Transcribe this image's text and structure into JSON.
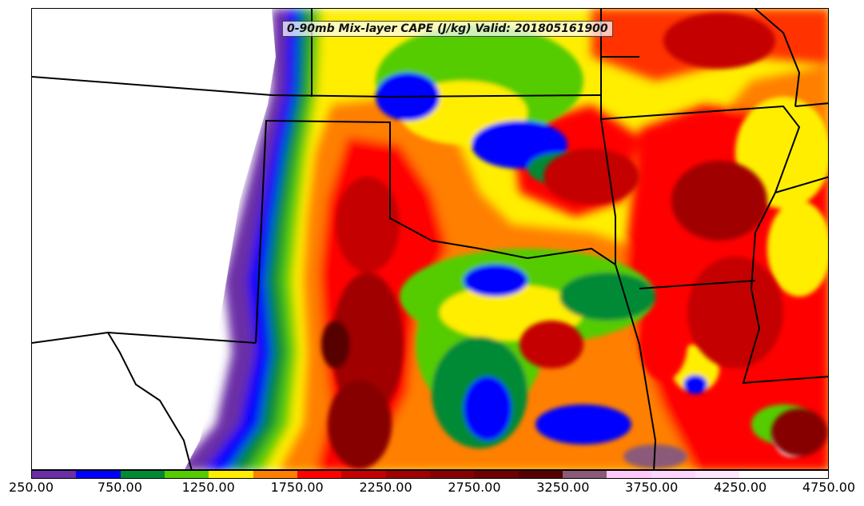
{
  "map": {
    "title": "0-90mb Mix-layer CAPE (J/kg) Valid: 201805161900",
    "field": "mixed-layer CAPE",
    "units": "J/kg",
    "valid_time": "201805161900",
    "region": "Southern Plains / Lower Mississippi Valley (TX, OK, KS, AR, LA, MO, MS)",
    "background_color": "#ffffff",
    "border_color": "#000000"
  },
  "colorbar": {
    "min": 250,
    "max": 4750,
    "interval": 250,
    "colors": [
      "#6a2ea6",
      "#0000ff",
      "#008a34",
      "#55cc00",
      "#ffee00",
      "#ff7f00",
      "#ff0000",
      "#c40000",
      "#a00000",
      "#860000",
      "#6e0000",
      "#560000",
      "#8a5a78",
      "#ffcafa",
      "#ffd6ff",
      "#ffe6ff",
      "#ffffff",
      "#ffffff"
    ],
    "tick_labels": [
      "250.00",
      "750.00",
      "1250.00",
      "1750.00",
      "2250.00",
      "2750.00",
      "3250.00",
      "3750.00",
      "4250.00",
      "4750.00"
    ]
  }
}
